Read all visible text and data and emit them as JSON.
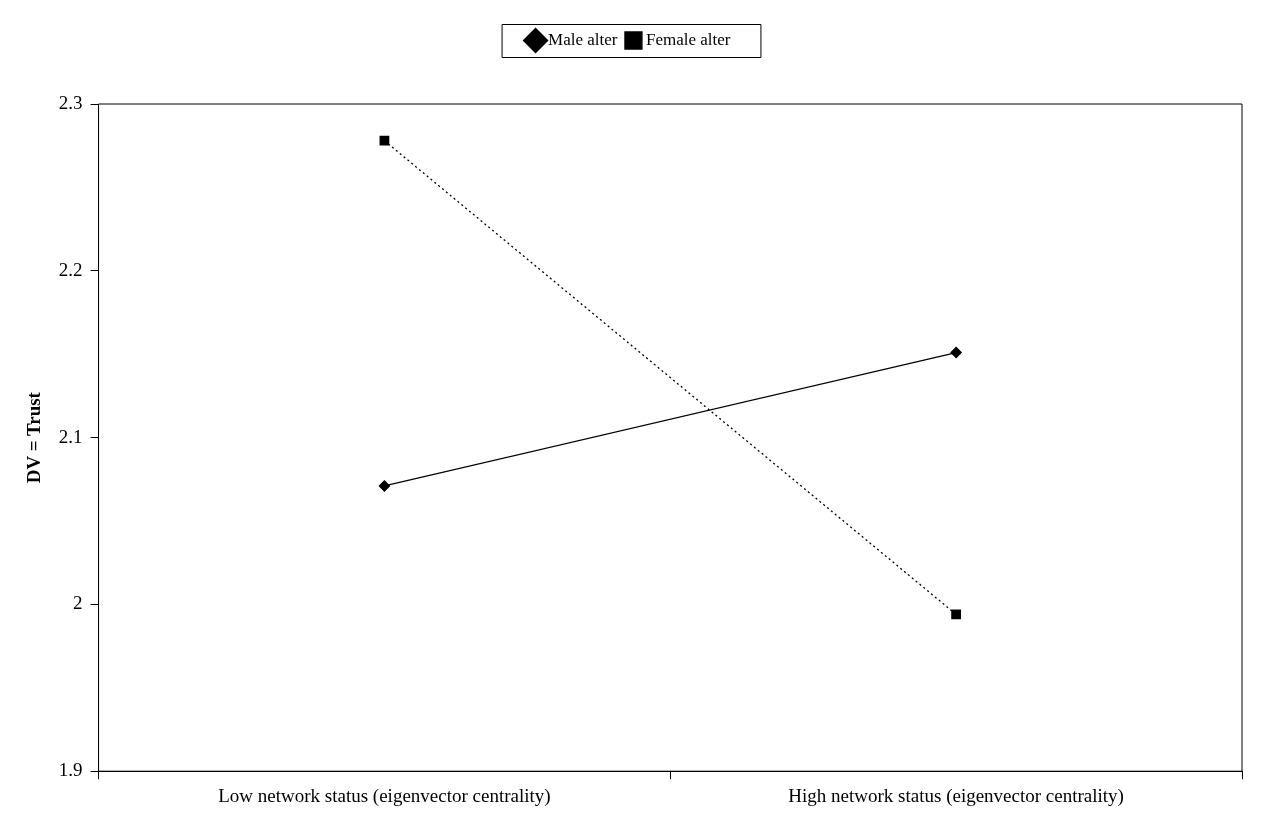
{
  "chart_data": {
    "type": "line",
    "ylabel": "DV = Trust",
    "categories": [
      "Low network status (eigenvector centrality)",
      "High network status (eigenvector centrality)"
    ],
    "series": [
      {
        "name": "Male alter",
        "color": "#000000",
        "values": [
          2.071,
          2.151
        ],
        "marker": "diamond",
        "line_style": "solid"
      },
      {
        "name": "Female alter",
        "color": "#000000",
        "values": [
          2.278,
          1.994
        ],
        "marker": "square",
        "line_style": "dotted"
      }
    ],
    "ylim": [
      1.9,
      2.3
    ],
    "yticks": [
      1.9,
      2,
      2.1,
      2.2,
      2.3
    ],
    "grid": false,
    "legend": "top"
  }
}
